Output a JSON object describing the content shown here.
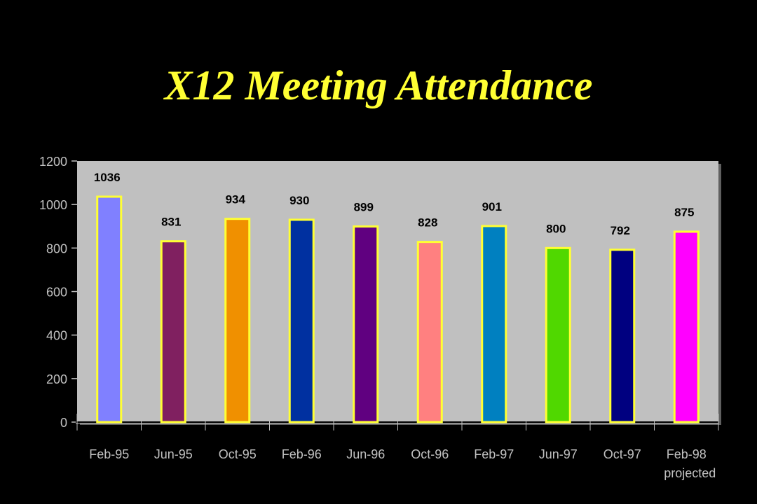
{
  "chart_data": {
    "type": "bar",
    "title": "X12 Meeting Attendance",
    "categories": [
      "Feb-95",
      "Jun-95",
      "Oct-95",
      "Feb-96",
      "Jun-96",
      "Oct-96",
      "Feb-97",
      "Jun-97",
      "Oct-97",
      "Feb-98"
    ],
    "category_notes": [
      "",
      "",
      "",
      "",
      "",
      "",
      "",
      "",
      "",
      "projected"
    ],
    "values": [
      1036,
      831,
      934,
      930,
      899,
      828,
      901,
      800,
      792,
      875
    ],
    "data_labels": [
      "1036",
      "831",
      "934",
      "930",
      "899",
      "828",
      "901",
      "800",
      "792",
      "875"
    ],
    "bar_colors": [
      "#8080ff",
      "#802060",
      "#f09000",
      "#0030a0",
      "#600080",
      "#ff8080",
      "#0080c0",
      "#50d800",
      "#000080",
      "#ff00ff"
    ],
    "bar_outline_color": "#ffff33",
    "yticks": [
      0,
      200,
      400,
      600,
      800,
      1000,
      1200
    ],
    "ytick_labels": [
      "0",
      "200",
      "400",
      "600",
      "800",
      "1000",
      "1200"
    ],
    "ylim": [
      0,
      1200
    ],
    "xlabel": "",
    "ylabel": "",
    "grid": false,
    "plot_background": "#c0c0c0",
    "page_background": "#000000",
    "title_color": "#ffff33"
  }
}
